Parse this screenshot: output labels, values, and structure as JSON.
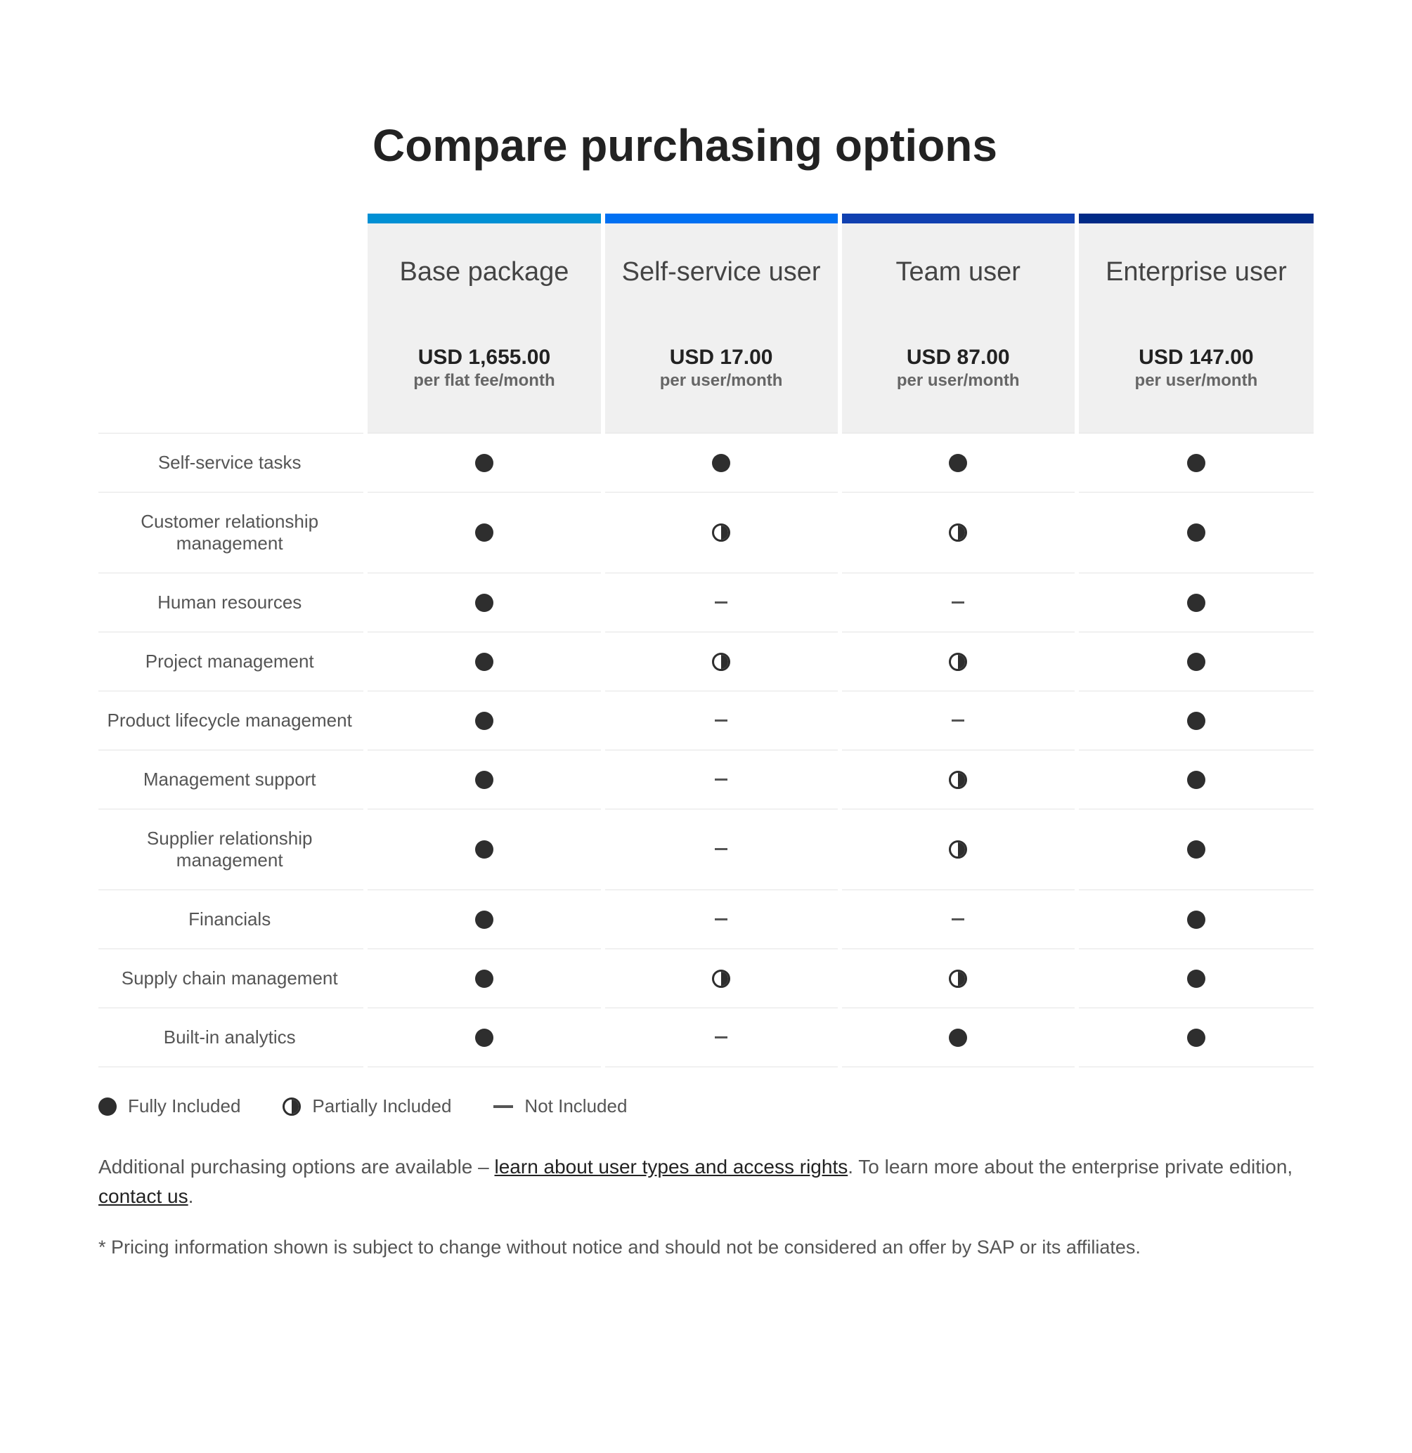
{
  "title": "Compare purchasing options",
  "plans": [
    {
      "name": "Base package",
      "price": "USD 1,655.00",
      "unit": "per flat fee/month",
      "accent": "#0090d4"
    },
    {
      "name": "Self-service user",
      "price": "USD 17.00",
      "unit": "per user/month",
      "accent": "#0070f2"
    },
    {
      "name": "Team user",
      "price": "USD 87.00",
      "unit": "per user/month",
      "accent": "#1040b0"
    },
    {
      "name": "Enterprise user",
      "price": "USD 147.00",
      "unit": "per user/month",
      "accent": "#002a86"
    }
  ],
  "features": [
    {
      "label": "Self-service tasks",
      "values": [
        "full",
        "full",
        "full",
        "full"
      ]
    },
    {
      "label": "Customer relationship management",
      "values": [
        "full",
        "partial",
        "partial",
        "full"
      ]
    },
    {
      "label": "Human resources",
      "values": [
        "full",
        "none",
        "none",
        "full"
      ]
    },
    {
      "label": "Project management",
      "values": [
        "full",
        "partial",
        "partial",
        "full"
      ]
    },
    {
      "label": "Product lifecycle management",
      "values": [
        "full",
        "none",
        "none",
        "full"
      ]
    },
    {
      "label": "Management support",
      "values": [
        "full",
        "none",
        "partial",
        "full"
      ]
    },
    {
      "label": "Supplier relationship management",
      "values": [
        "full",
        "none",
        "partial",
        "full"
      ]
    },
    {
      "label": "Financials",
      "values": [
        "full",
        "none",
        "none",
        "full"
      ]
    },
    {
      "label": "Supply chain management",
      "values": [
        "full",
        "partial",
        "partial",
        "full"
      ]
    },
    {
      "label": "Built-in analytics",
      "values": [
        "full",
        "none",
        "full",
        "full"
      ]
    }
  ],
  "legend": {
    "full": "Fully Included",
    "partial": "Partially Included",
    "none": "Not Included"
  },
  "footnote": {
    "pre": "Additional purchasing options are available – ",
    "link1": "learn about user types and access rights",
    "mid": ". To learn more about the enterprise private edition, ",
    "link2": "contact us",
    "post": "."
  },
  "disclaimer": "* Pricing information shown is subject to change without notice and should not be considered an offer by SAP or its affiliates.",
  "icon_color": "#2e2e2e",
  "row_border_color": "#e4e4e4",
  "head_bg": "#f0f0f0"
}
